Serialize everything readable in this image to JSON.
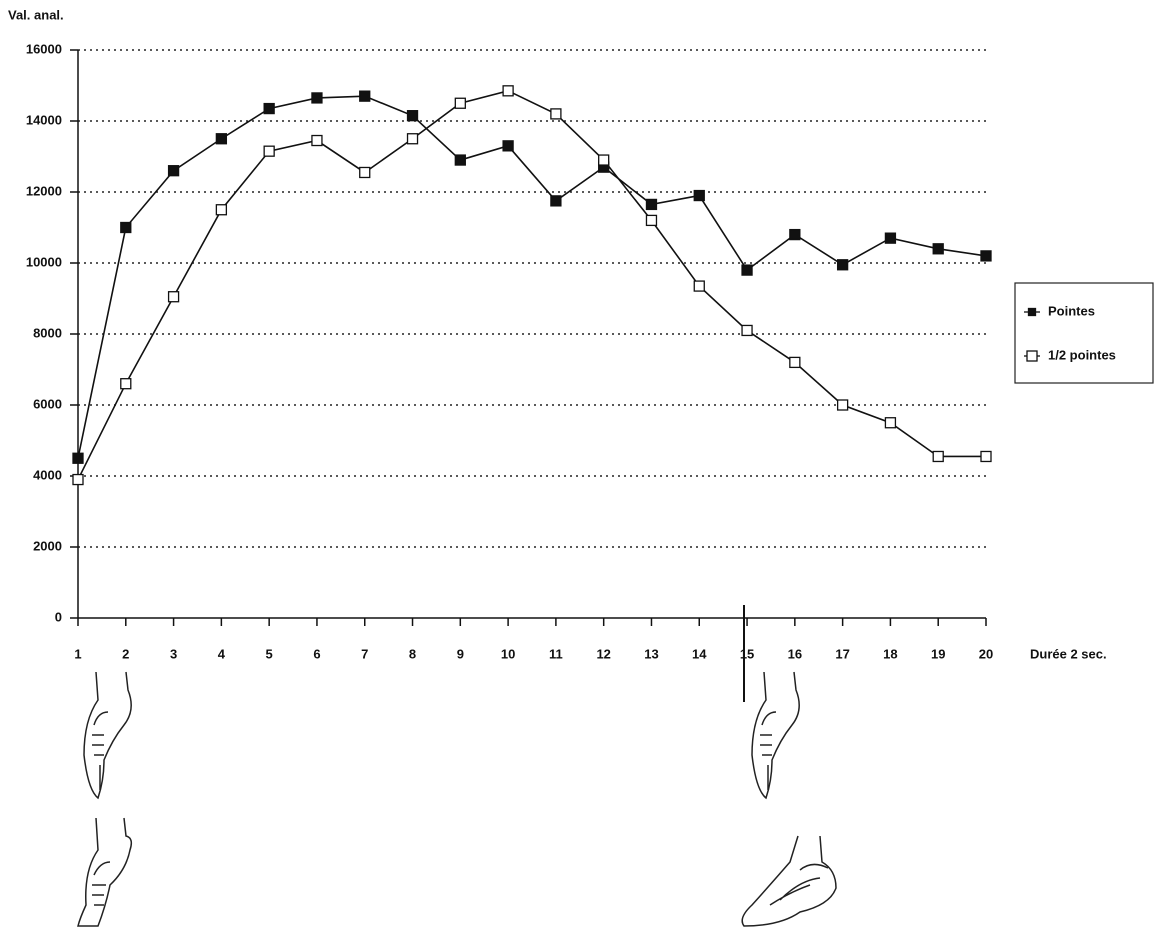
{
  "chart_data": {
    "type": "line",
    "y_label": "Val. anal.",
    "x_label": "Durée 2 sec.",
    "x": [
      1,
      2,
      3,
      4,
      5,
      6,
      7,
      8,
      9,
      10,
      11,
      12,
      13,
      14,
      15,
      16,
      17,
      18,
      19,
      20
    ],
    "xlim": [
      1,
      20
    ],
    "xticks": [
      1,
      2,
      3,
      4,
      5,
      6,
      7,
      8,
      9,
      10,
      11,
      12,
      13,
      14,
      15,
      16,
      17,
      18,
      19,
      20
    ],
    "ylim": [
      0,
      16000
    ],
    "yticks": [
      0,
      2000,
      4000,
      6000,
      8000,
      10000,
      12000,
      14000,
      16000
    ],
    "grid": true,
    "legend": "right",
    "series": [
      {
        "name": "Pointes",
        "color": "#111111",
        "marker": "filled-square",
        "values": [
          4500,
          11000,
          12600,
          13500,
          14350,
          14650,
          14700,
          14150,
          12900,
          13300,
          11750,
          12700,
          11650,
          11900,
          9800,
          10800,
          9950,
          10700,
          10400,
          10200
        ]
      },
      {
        "name": "1/2 pointes",
        "color": "#111111",
        "marker": "open-square",
        "values": [
          3900,
          6600,
          9050,
          11500,
          13150,
          13450,
          12550,
          13500,
          14500,
          14850,
          14200,
          12900,
          11200,
          9350,
          8100,
          7200,
          6000,
          5500,
          4550,
          4550
        ]
      }
    ]
  }
}
